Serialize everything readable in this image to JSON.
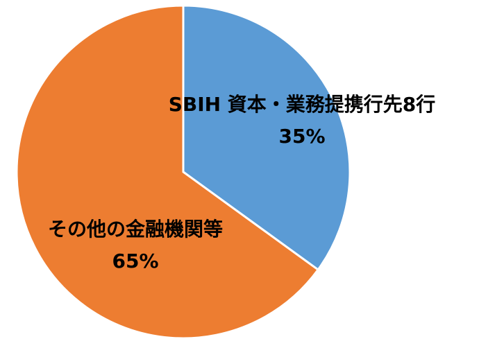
{
  "chart_data": {
    "type": "pie",
    "categories": [
      "SBIH 資本・業務提携行先8行",
      "その他の金融機関等"
    ],
    "values": [
      35,
      65
    ],
    "value_labels": [
      "35%",
      "65%"
    ],
    "colors": [
      "#5b9bd5",
      "#ed7d31"
    ]
  }
}
